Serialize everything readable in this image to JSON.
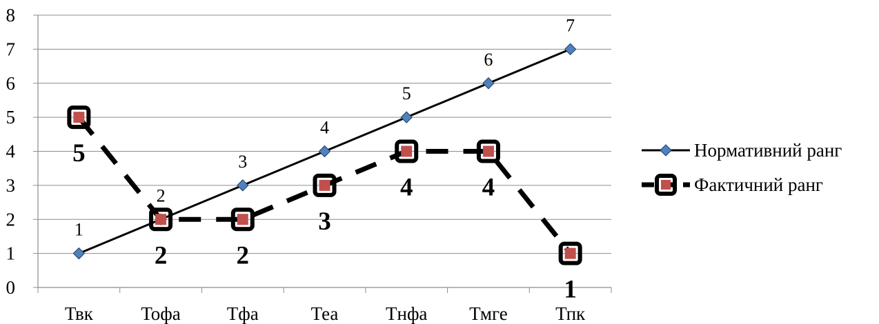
{
  "chart_data": {
    "type": "line",
    "categories": [
      "Твк",
      "Тофа",
      "Тфа",
      "Теа",
      "Тнфа",
      "Тмге",
      "Тпк"
    ],
    "series": [
      {
        "name": "Нормативний ранг",
        "values": [
          1,
          2,
          3,
          4,
          5,
          6,
          7
        ],
        "data_labels": [
          "1",
          "2",
          "3",
          "4",
          "5",
          "6",
          "7"
        ],
        "color": "#4f81bd",
        "line_color": "#000000",
        "marker": "diamond",
        "line_style": "solid"
      },
      {
        "name": "Фактичний ранг",
        "values": [
          5,
          2,
          2,
          3,
          4,
          4,
          1
        ],
        "data_labels": [
          "5",
          "2",
          "2",
          "3",
          "4",
          "4",
          "1"
        ],
        "color": "#c0504d",
        "line_color": "#000000",
        "marker": "square",
        "line_style": "dashed"
      }
    ],
    "ylim": [
      0,
      8
    ],
    "yticks": [
      "0",
      "1",
      "2",
      "3",
      "4",
      "5",
      "6",
      "7",
      "8"
    ],
    "grid": true,
    "legend": "right"
  }
}
